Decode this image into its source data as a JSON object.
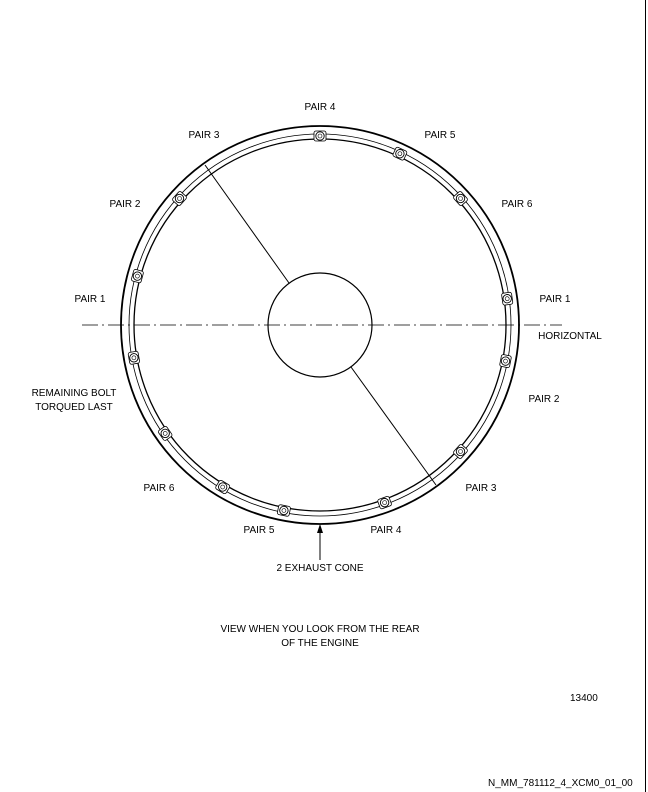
{
  "labels": {
    "top_pair4": "PAIR 4",
    "top_pair3": "PAIR 3",
    "top_pair5": "PAIR 5",
    "left_pair2": "PAIR 2",
    "right_pair6": "PAIR 6",
    "left_pair1": "PAIR 1",
    "right_pair1": "PAIR 1",
    "horizontal": "HORIZONTAL",
    "remaining_line1": "REMAINING BOLT",
    "remaining_line2": "TORQUED LAST",
    "right_pair2": "PAIR 2",
    "left_pair6": "PAIR 6",
    "right_pair3": "PAIR 3",
    "bottom_pair5": "PAIR 5",
    "bottom_pair4": "PAIR 4",
    "exhaust_cone": "2 EXHAUST CONE"
  },
  "caption": {
    "line1": "VIEW WHEN YOU LOOK FROM THE REAR",
    "line2": "OF THE ENGINE"
  },
  "figure_number": "13400",
  "drawing_id": "N_MM_781112_4_XCM0_01_00"
}
